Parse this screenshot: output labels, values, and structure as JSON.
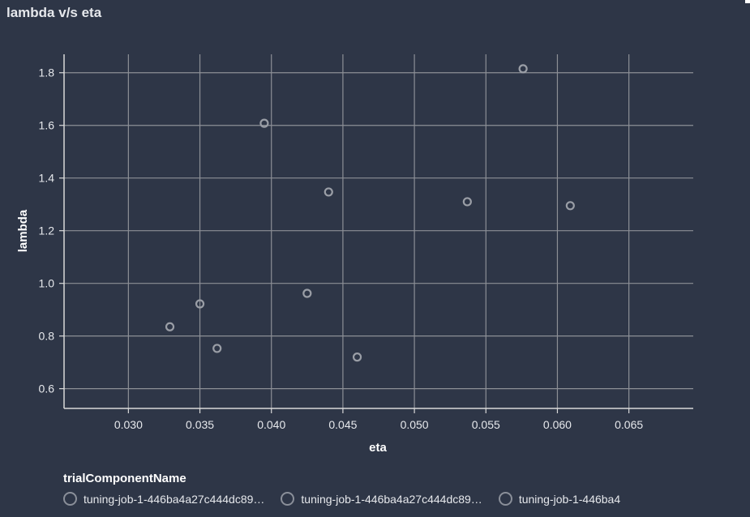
{
  "page": {
    "title": "lambda v/s eta"
  },
  "chart_data": {
    "type": "scatter",
    "title": "lambda v/s eta",
    "xlabel": "eta",
    "ylabel": "lambda",
    "xlim": [
      0.0255,
      0.0695
    ],
    "ylim": [
      0.525,
      1.87
    ],
    "xticks": [
      "0.030",
      "0.035",
      "0.040",
      "0.045",
      "0.050",
      "0.055",
      "0.060",
      "0.065"
    ],
    "yticks": [
      "0.6",
      "0.8",
      "1.0",
      "1.2",
      "1.4",
      "1.6",
      "1.8"
    ],
    "grid": true,
    "legend": {
      "title": "trialComponentName",
      "placement": "bottom-left",
      "items": [
        "tuning-job-1-446ba4a27c444dc89…",
        "tuning-job-1-446ba4a27c444dc89…",
        "tuning-job-1-446ba4"
      ]
    },
    "colors": {
      "marker": "#9a9ea6",
      "grid": "#8c8f96",
      "axis": "#d9d9d9"
    },
    "points": [
      {
        "x": 0.0329,
        "y": 0.835
      },
      {
        "x": 0.035,
        "y": 0.922
      },
      {
        "x": 0.0362,
        "y": 0.753
      },
      {
        "x": 0.0395,
        "y": 1.608
      },
      {
        "x": 0.0425,
        "y": 0.962
      },
      {
        "x": 0.044,
        "y": 1.347
      },
      {
        "x": 0.046,
        "y": 0.72
      },
      {
        "x": 0.0537,
        "y": 1.31
      },
      {
        "x": 0.0576,
        "y": 1.815
      },
      {
        "x": 0.0609,
        "y": 1.295
      }
    ]
  }
}
